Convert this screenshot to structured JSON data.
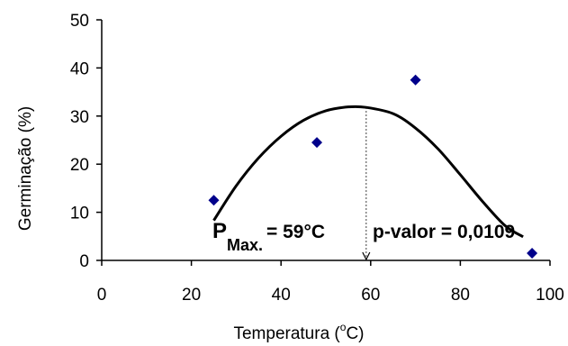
{
  "chart_data": {
    "type": "scatter",
    "xlabel_prefix": "Temperatura (",
    "xlabel_sup": "o",
    "xlabel_suffix": "C)",
    "ylabel": "Germinação (%)",
    "xlim": [
      0,
      100
    ],
    "ylim": [
      0,
      50
    ],
    "x_ticks": [
      "0",
      "20",
      "40",
      "60",
      "80",
      "100"
    ],
    "y_ticks": [
      "0",
      "10",
      "20",
      "30",
      "40",
      "50"
    ],
    "grid": false,
    "points": [
      {
        "x": 25,
        "y": 12.5
      },
      {
        "x": 48,
        "y": 24.5
      },
      {
        "x": 70,
        "y": 37.5
      },
      {
        "x": 96,
        "y": 1.5
      }
    ],
    "fit_curve": {
      "x": [
        25,
        30,
        35,
        40,
        45,
        50,
        55,
        59,
        65,
        70,
        75,
        80,
        85,
        90,
        94
      ],
      "y": [
        8.3,
        15.5,
        21.3,
        25.8,
        29.1,
        31.1,
        31.9,
        31.8,
        30.5,
        27.5,
        23.2,
        17.8,
        12.2,
        7.2,
        4.9
      ],
      "peak_x": 59,
      "peak_y": 31.8
    },
    "point_color": "#00008b",
    "curve_color": "#000000",
    "annotation": {
      "p_label": "P",
      "p_subscript": "Max.",
      "p_value_text": "= 59°C",
      "pvalor_text": "p-valor = 0,0109"
    }
  }
}
